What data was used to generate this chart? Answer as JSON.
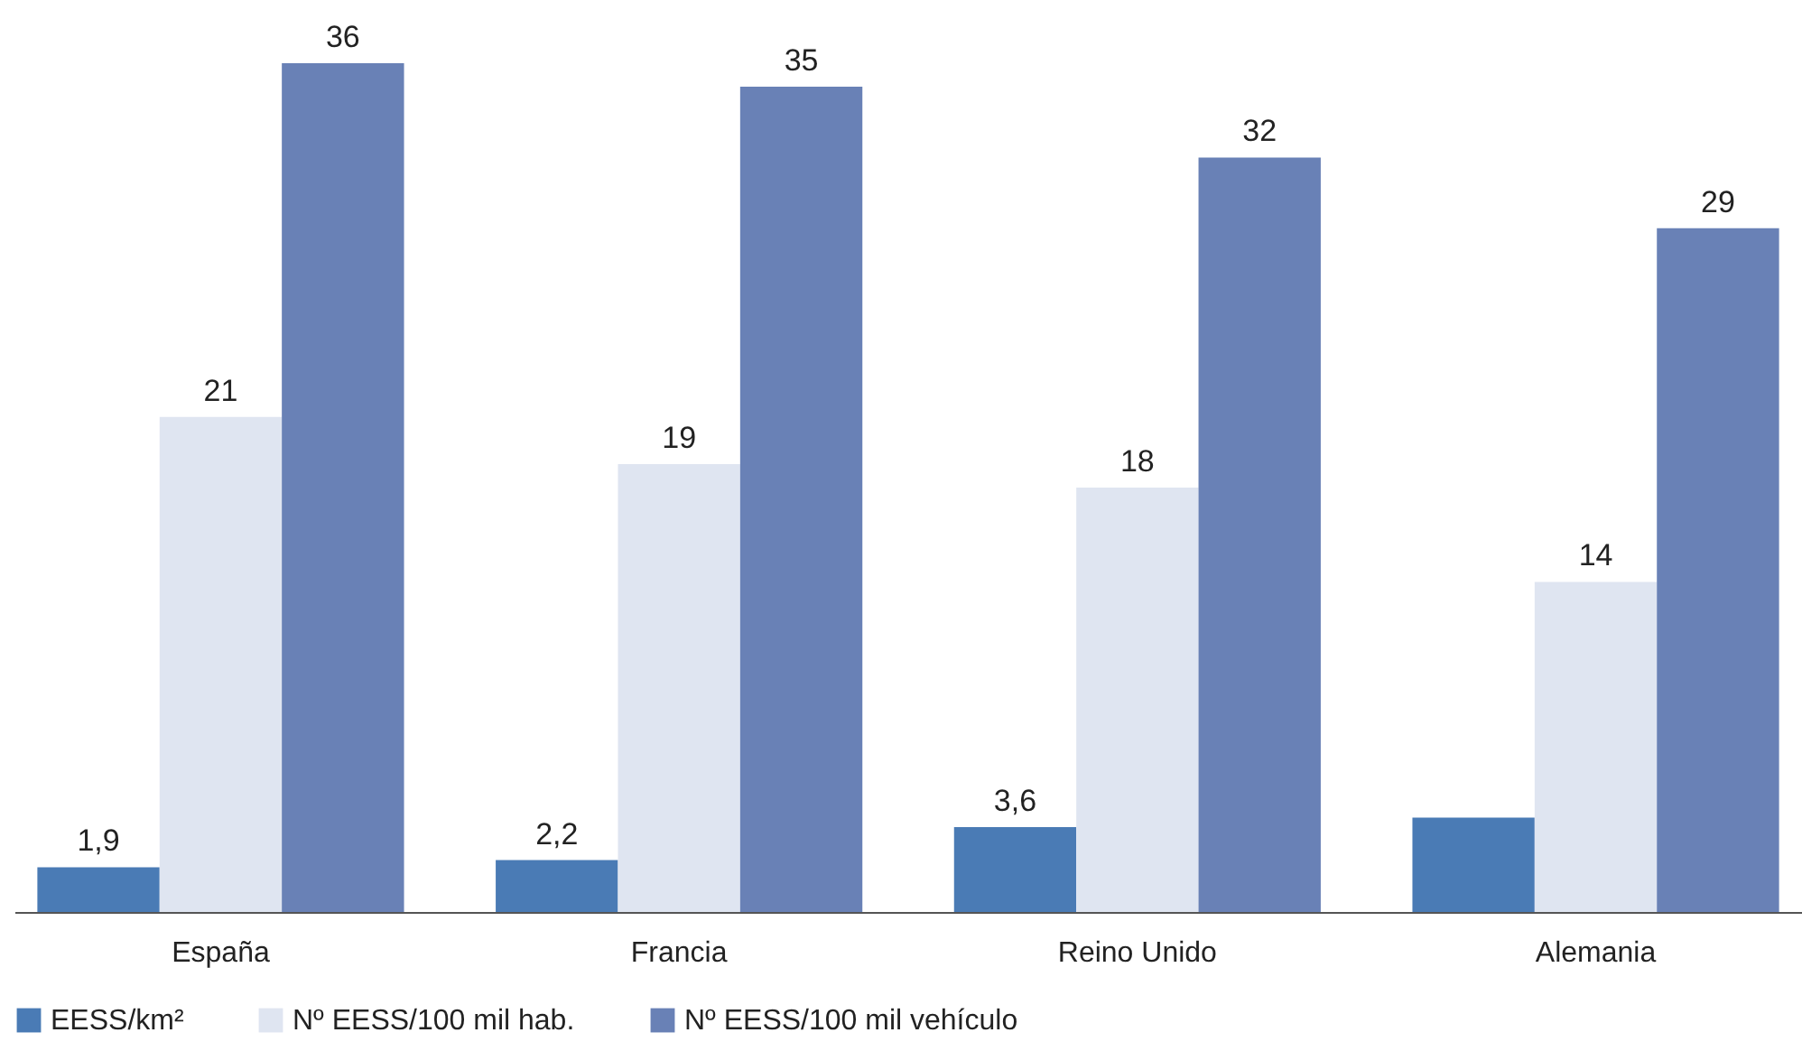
{
  "chart_data": {
    "type": "bar",
    "categories": [
      "España",
      "Francia",
      "Reino Unido",
      "Alemania"
    ],
    "series": [
      {
        "name": "EESS/km²",
        "color": "#4a7bb5",
        "values": [
          1.9,
          2.2,
          3.6,
          4.0
        ],
        "value_labels": [
          "1,9",
          "2,2",
          "3,6",
          null
        ]
      },
      {
        "name": "Nº EESS/100 mil hab.",
        "color": "#dfe5f1",
        "values": [
          21,
          19,
          18,
          14
        ],
        "value_labels": [
          "21",
          "19",
          "18",
          "14"
        ]
      },
      {
        "name": "Nº EESS/100 mil  vehículo",
        "color": "#6981b6",
        "values": [
          36,
          35,
          32,
          29
        ],
        "value_labels": [
          "36",
          "35",
          "32",
          "29"
        ]
      }
    ],
    "legend": "bottom",
    "grid": false,
    "tick_labels": "x"
  }
}
